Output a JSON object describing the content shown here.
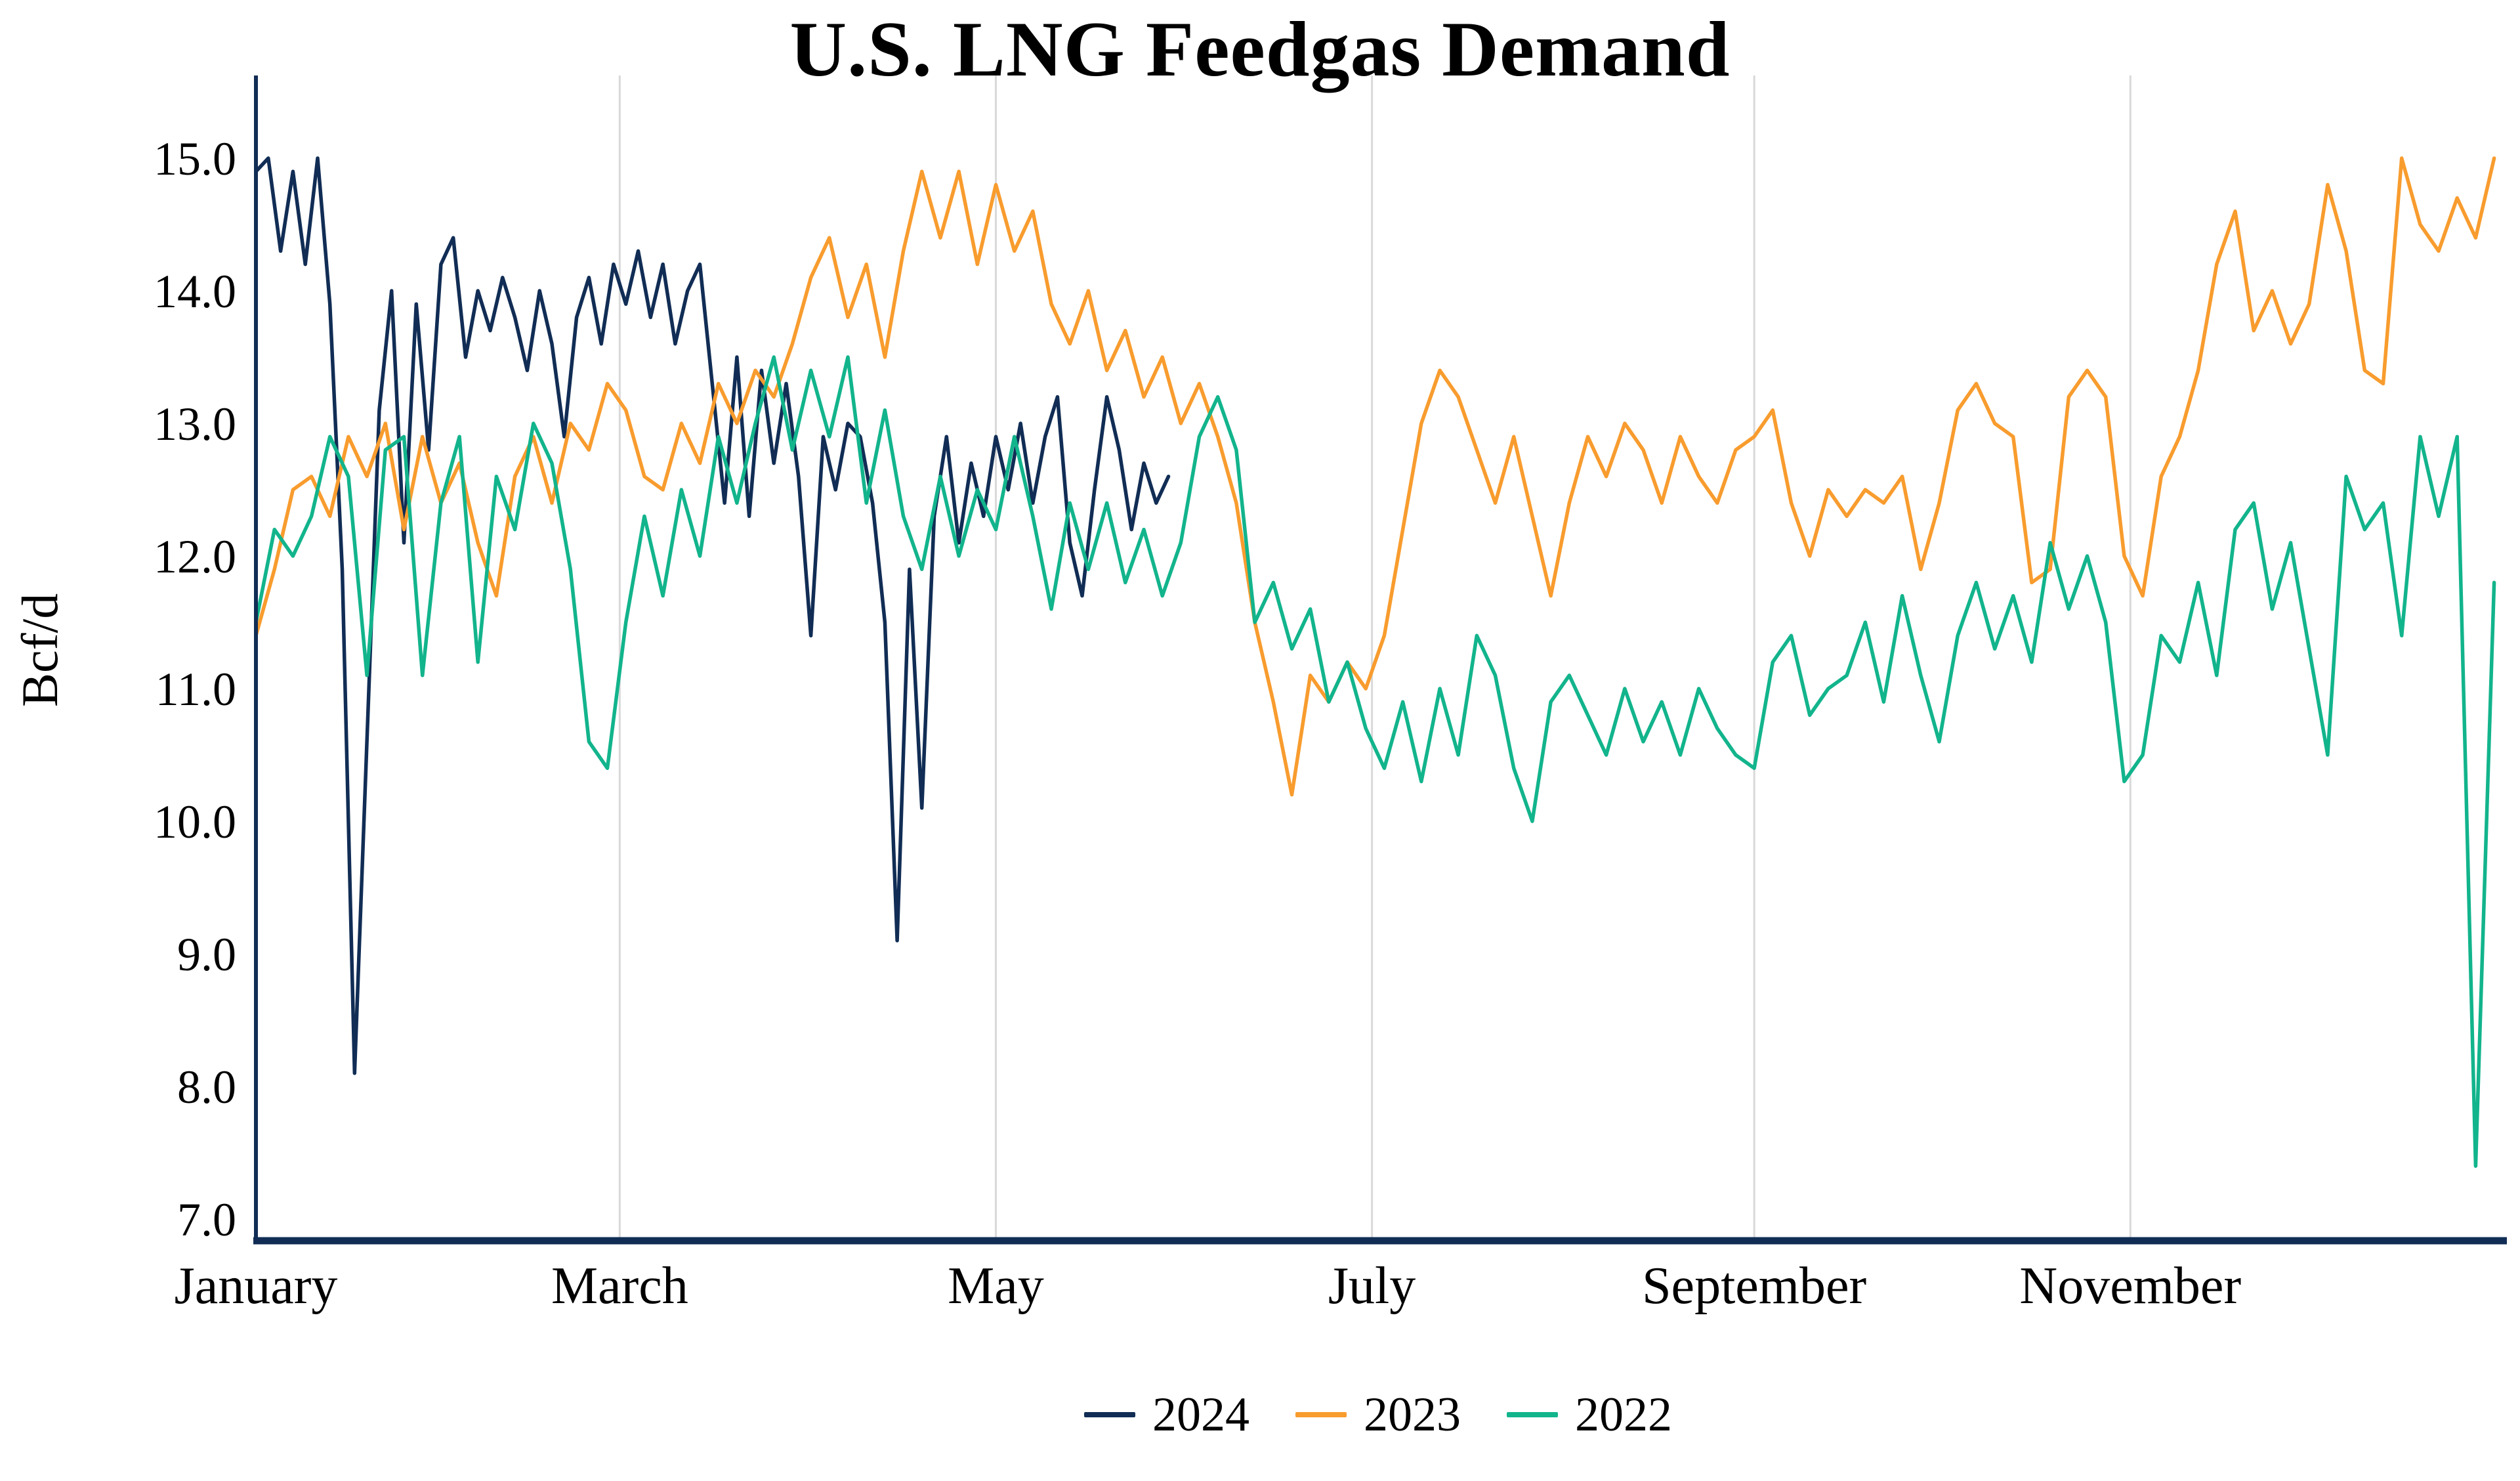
{
  "chart_data": {
    "type": "line",
    "title": "U.S. LNG Feedgas Demand",
    "ylabel": "Bcf/d",
    "x_axis": {
      "ticks": [
        {
          "label": "January",
          "day": 1
        },
        {
          "label": "March",
          "day": 60
        },
        {
          "label": "May",
          "day": 121
        },
        {
          "label": "July",
          "day": 182
        },
        {
          "label": "September",
          "day": 244
        },
        {
          "label": "November",
          "day": 305
        }
      ],
      "gridline_days": [
        1,
        60,
        121,
        182,
        244,
        305
      ],
      "range_days": [
        1,
        365
      ],
      "grid": "vertical-only"
    },
    "y_axis": {
      "ticks": [
        "7.0",
        "8.0",
        "9.0",
        "10.0",
        "11.0",
        "12.0",
        "13.0",
        "14.0",
        "15.0"
      ],
      "min": 7.0,
      "max": 15.6
    },
    "style": {
      "axis_color": "#112d55",
      "grid_color": "#d9d9d9",
      "background": "#ffffff",
      "text_color": "#000000"
    },
    "legend": {
      "position": "bottom",
      "entries": [
        "2024",
        "2023",
        "2022"
      ]
    },
    "series": [
      {
        "name": "2024",
        "color": "#112d55",
        "start_day": 1,
        "step_days": 2,
        "values": [
          14.9,
          15.0,
          14.3,
          14.9,
          14.2,
          15.0,
          13.9,
          11.9,
          8.1,
          10.6,
          13.1,
          14.0,
          12.1,
          13.9,
          12.8,
          14.2,
          14.4,
          13.5,
          14.0,
          13.7,
          14.1,
          13.8,
          13.4,
          14.0,
          13.6,
          12.9,
          13.8,
          14.1,
          13.6,
          14.2,
          13.9,
          14.3,
          13.8,
          14.2,
          13.6,
          14.0,
          14.2,
          13.3,
          12.4,
          13.5,
          12.3,
          13.4,
          12.7,
          13.3,
          12.6,
          11.4,
          12.9,
          12.5,
          13.0,
          12.9,
          12.4,
          11.5,
          9.1,
          11.9,
          10.1,
          12.3,
          12.9,
          12.1,
          12.7,
          12.3,
          12.9,
          12.5,
          13.0,
          12.4,
          12.9,
          13.2,
          12.1,
          11.7,
          12.5,
          13.2,
          12.8,
          12.2,
          12.7,
          12.4,
          12.6
        ]
      },
      {
        "name": "2023",
        "color": "#f89c2e",
        "start_day": 1,
        "step_days": 3,
        "values": [
          11.4,
          11.9,
          12.5,
          12.6,
          12.3,
          12.9,
          12.6,
          13.0,
          12.2,
          12.9,
          12.4,
          12.7,
          12.1,
          11.7,
          12.6,
          12.9,
          12.4,
          13.0,
          12.8,
          13.3,
          13.1,
          12.6,
          12.5,
          13.0,
          12.7,
          13.3,
          13.0,
          13.4,
          13.2,
          13.6,
          14.1,
          14.4,
          13.8,
          14.2,
          13.5,
          14.3,
          14.9,
          14.4,
          14.9,
          14.2,
          14.8,
          14.3,
          14.6,
          13.9,
          13.6,
          14.0,
          13.4,
          13.7,
          13.2,
          13.5,
          13.0,
          13.3,
          12.9,
          12.4,
          11.5,
          10.9,
          10.2,
          11.1,
          10.9,
          11.2,
          11.0,
          11.4,
          12.2,
          13.0,
          13.4,
          13.2,
          12.8,
          12.4,
          12.9,
          12.3,
          11.7,
          12.4,
          12.9,
          12.6,
          13.0,
          12.8,
          12.4,
          12.9,
          12.6,
          12.4,
          12.8,
          12.9,
          13.1,
          12.4,
          12.0,
          12.5,
          12.3,
          12.5,
          12.4,
          12.6,
          11.9,
          12.4,
          13.1,
          13.3,
          13.0,
          12.9,
          11.8,
          11.9,
          13.2,
          13.4,
          13.2,
          12.0,
          11.7,
          12.6,
          12.9,
          13.4,
          14.2,
          14.6,
          13.7,
          14.0,
          13.6,
          13.9,
          14.8,
          14.3,
          13.4,
          13.3,
          15.0,
          14.5,
          14.3,
          14.7,
          14.4,
          15.0
        ]
      },
      {
        "name": "2022",
        "color": "#12b48c",
        "start_day": 1,
        "step_days": 3,
        "values": [
          11.5,
          12.2,
          12.0,
          12.3,
          12.9,
          12.6,
          11.1,
          12.8,
          12.9,
          11.1,
          12.4,
          12.9,
          11.2,
          12.6,
          12.2,
          13.0,
          12.7,
          11.9,
          10.6,
          10.4,
          11.5,
          12.3,
          11.7,
          12.5,
          12.0,
          12.9,
          12.4,
          13.0,
          13.5,
          12.8,
          13.4,
          12.9,
          13.5,
          12.4,
          13.1,
          12.3,
          11.9,
          12.6,
          12.0,
          12.5,
          12.2,
          12.9,
          12.3,
          11.6,
          12.4,
          11.9,
          12.4,
          11.8,
          12.2,
          11.7,
          12.1,
          12.9,
          13.2,
          12.8,
          11.5,
          11.8,
          11.3,
          11.6,
          10.9,
          11.2,
          10.7,
          10.4,
          10.9,
          10.3,
          11.0,
          10.5,
          11.4,
          11.1,
          10.4,
          10.0,
          10.9,
          11.1,
          10.8,
          10.5,
          11.0,
          10.6,
          10.9,
          10.5,
          11.0,
          10.7,
          10.5,
          10.4,
          11.2,
          11.4,
          10.8,
          11.0,
          11.1,
          11.5,
          10.9,
          11.7,
          11.1,
          10.6,
          11.4,
          11.8,
          11.3,
          11.7,
          11.2,
          12.1,
          11.6,
          12.0,
          11.5,
          10.3,
          10.5,
          11.4,
          11.2,
          11.8,
          11.1,
          12.2,
          12.4,
          11.6,
          12.1,
          11.3,
          10.5,
          12.6,
          12.2,
          12.4,
          11.4,
          12.9,
          12.3,
          12.9,
          7.4,
          11.8
        ]
      }
    ]
  }
}
